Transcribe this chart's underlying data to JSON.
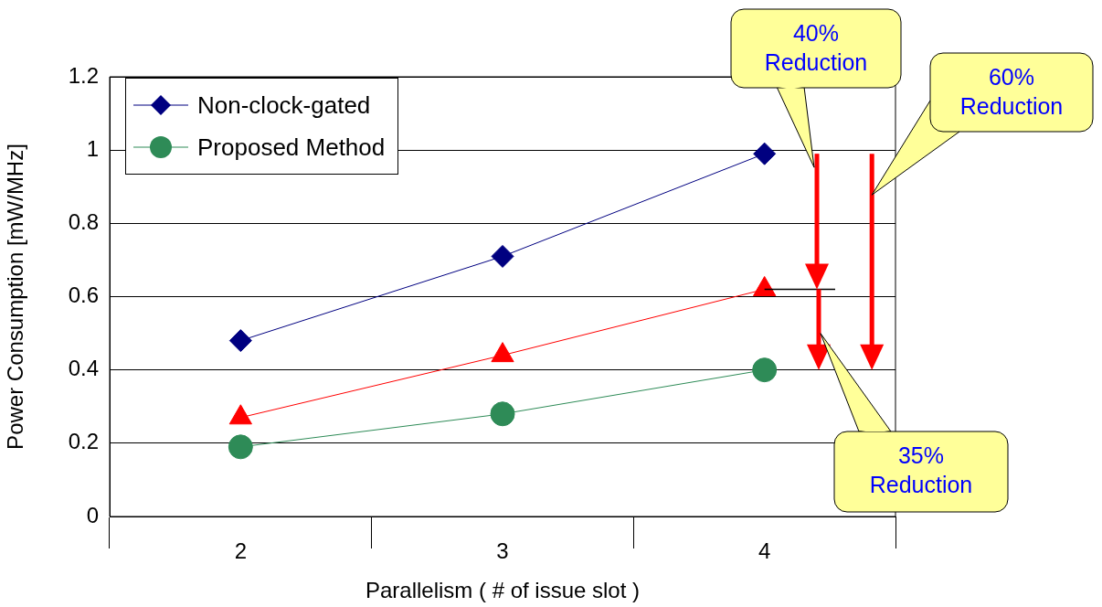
{
  "chart_data": {
    "type": "line",
    "xlabel": "Parallelism ( # of issue slot )",
    "ylabel": "Power Consumption [mW/MHz]",
    "categories": [
      "2",
      "3",
      "4"
    ],
    "series": [
      {
        "name": "Non-clock-gated",
        "color": "#000080",
        "marker": "diamond",
        "values": [
          0.48,
          0.71,
          0.99
        ]
      },
      {
        "color": "#ff0000",
        "marker": "triangle",
        "values": [
          0.27,
          0.44,
          0.62
        ]
      },
      {
        "name": "Proposed Method",
        "color": "#2e8b57",
        "marker": "circle",
        "values": [
          0.19,
          0.28,
          0.4
        ]
      }
    ],
    "ylim": [
      0,
      1.2
    ],
    "yticks": [
      0,
      0.2,
      0.4,
      0.6,
      0.8,
      1,
      1.2
    ],
    "grid": "y",
    "legend": "top left",
    "annotations": [
      "40% Reduction",
      "60% Reduction",
      "35% Reduction"
    ]
  }
}
